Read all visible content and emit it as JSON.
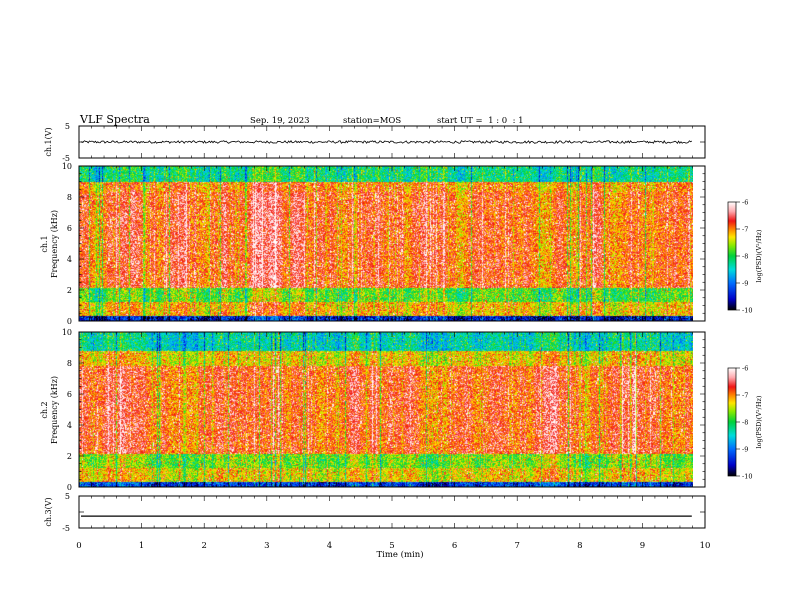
{
  "header": {
    "title": "VLF Spectra",
    "date": "Sep. 19, 2023",
    "station": "station=MOS",
    "start": "start UT =  1 : 0  : 1"
  },
  "chart_data": [
    {
      "type": "line",
      "panel": "ch1-waveform",
      "ylabel": "ch.1(V)",
      "ylim": [
        -5,
        5
      ],
      "yticks": [
        "5",
        "-5"
      ],
      "x_range": [
        0,
        10
      ],
      "baseline_value": 0,
      "noise_amplitude": 0.4,
      "series": [
        {
          "x": [
            0,
            9.8
          ],
          "y": [
            0,
            0
          ]
        }
      ]
    },
    {
      "type": "heatmap",
      "panel": "ch1-spectrogram",
      "ylabel": [
        "ch.1",
        "Frequency (kHz)"
      ],
      "ylim": [
        0,
        10
      ],
      "yticks": [
        "0",
        "2",
        "4",
        "6",
        "8",
        "10"
      ],
      "x_range": [
        0,
        10
      ],
      "data_end_min": 9.8,
      "bands_khz": [
        {
          "from": 0,
          "to": 0.3,
          "level": -9.5
        },
        {
          "from": 0.3,
          "to": 1.2,
          "level": -7.2
        },
        {
          "from": 1.2,
          "to": 2.1,
          "level": -7.8
        },
        {
          "from": 2.1,
          "to": 8.3,
          "level": -6.8
        },
        {
          "from": 8.3,
          "to": 9.0,
          "level": -7.0
        },
        {
          "from": 9.0,
          "to": 10,
          "level": -8.2
        }
      ],
      "colorbar": {
        "label": "log(PSD)(V²/Hz)",
        "ticks": [
          "-6",
          "-7",
          "-8",
          "-9",
          "-10"
        ],
        "range": [
          -10,
          -6
        ]
      }
    },
    {
      "type": "heatmap",
      "panel": "ch2-spectrogram",
      "ylabel": [
        "ch.2",
        "Frequency (kHz)"
      ],
      "ylim": [
        0,
        10
      ],
      "yticks": [
        "0",
        "2",
        "4",
        "6",
        "8",
        "10"
      ],
      "x_range": [
        0,
        10
      ],
      "data_end_min": 9.8,
      "bands_khz": [
        {
          "from": 0,
          "to": 0.3,
          "level": -9.3
        },
        {
          "from": 0.3,
          "to": 1.2,
          "level": -7.3
        },
        {
          "from": 1.2,
          "to": 2.1,
          "level": -7.7
        },
        {
          "from": 2.1,
          "to": 7.8,
          "level": -6.8
        },
        {
          "from": 7.8,
          "to": 8.8,
          "level": -7.3
        },
        {
          "from": 8.8,
          "to": 10,
          "level": -8.4
        }
      ],
      "colorbar": {
        "label": "log(PSD)(V²/Hz)",
        "ticks": [
          "-6",
          "-7",
          "-8",
          "-9",
          "-10"
        ],
        "range": [
          -10,
          -6
        ]
      }
    },
    {
      "type": "line",
      "panel": "ch3-waveform",
      "ylabel": "ch.3(V)",
      "ylim": [
        -5,
        5
      ],
      "yticks": [
        "5",
        "-5"
      ],
      "x_range": [
        0,
        10
      ],
      "baseline_value": -1.3,
      "noise_amplitude": 0,
      "series": [
        {
          "x": [
            0,
            9.8
          ],
          "y": [
            -1.3,
            -1.3
          ]
        }
      ],
      "xlabel": "Time (min)",
      "xticks": [
        "0",
        "1",
        "2",
        "3",
        "4",
        "5",
        "6",
        "7",
        "8",
        "9",
        "10"
      ]
    }
  ]
}
